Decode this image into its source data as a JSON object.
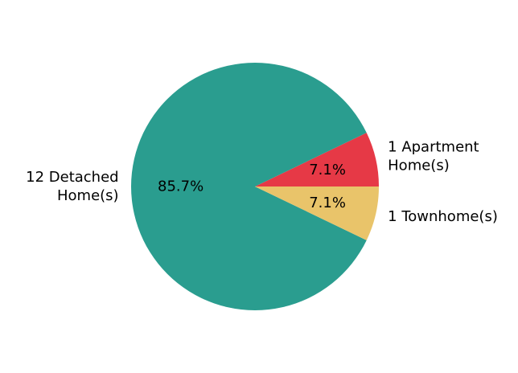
{
  "chart_data": {
    "type": "pie",
    "title": "",
    "counterclock": true,
    "start_angle_deg": 0,
    "slices": [
      {
        "label_lines": [
          "1 Apartment",
          "Home(s)"
        ],
        "value": 1,
        "pct": "7.1%",
        "color": "#e63946",
        "label_align": "start"
      },
      {
        "label_lines": [
          "12 Detached",
          "Home(s)"
        ],
        "value": 12,
        "pct": "85.7%",
        "color": "#2a9d8f",
        "label_align": "end"
      },
      {
        "label_lines": [
          "1 Townhome(s)"
        ],
        "value": 1,
        "pct": "7.1%",
        "color": "#e9c46a",
        "label_align": "start"
      }
    ]
  }
}
